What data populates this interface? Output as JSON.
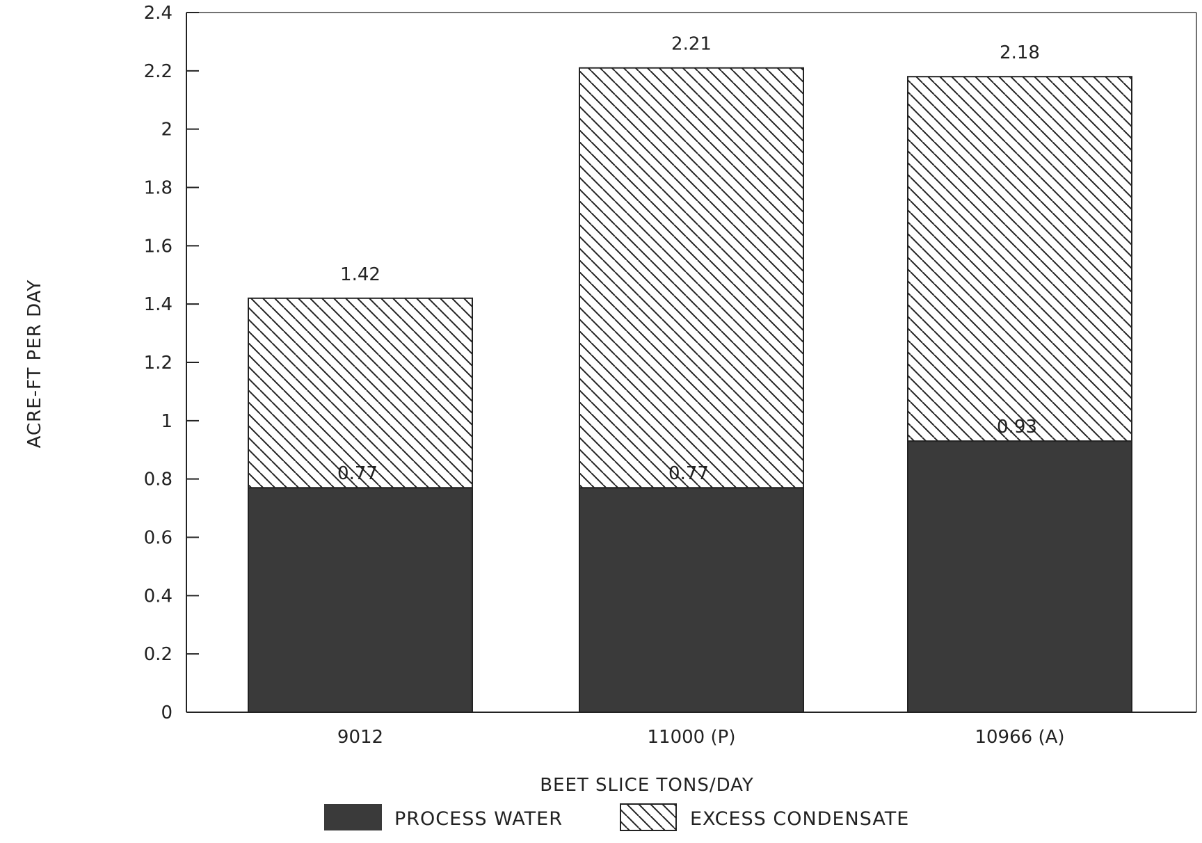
{
  "chart_data": {
    "type": "bar",
    "stacked": true,
    "categories": [
      "9012",
      "11000 (P)",
      "10966 (A)"
    ],
    "series": [
      {
        "name": "PROCESS WATER",
        "values": [
          0.77,
          0.77,
          0.93
        ],
        "color": "#3a3a3a",
        "pattern": "solid"
      },
      {
        "name": "EXCESS CONDENSATE",
        "values": [
          0.65,
          1.44,
          1.25
        ],
        "color": "#222222",
        "pattern": "diagonal-hatch"
      }
    ],
    "segment_labels": [
      "0.77",
      "0.77",
      "0.93"
    ],
    "total_labels": [
      "1.42",
      "2.21",
      "2.18"
    ],
    "totals": [
      1.42,
      2.21,
      2.18
    ],
    "xlabel": "BEET SLICE TONS/DAY",
    "ylabel": "ACRE-FT PER DAY",
    "ylim": [
      0,
      2.4
    ],
    "yticks": [
      0,
      0.2,
      0.4,
      0.6,
      0.8,
      1,
      1.2,
      1.4,
      1.6,
      1.8,
      2,
      2.2,
      2.4
    ],
    "ytick_labels": [
      "0",
      "0.2",
      "0.4",
      "0.6",
      "0.8",
      "1",
      "1.2",
      "1.4",
      "1.6",
      "1.8",
      "2",
      "2.2",
      "2.4"
    ],
    "grid": false,
    "legend_position": "bottom"
  },
  "legend": {
    "items": [
      {
        "label": "PROCESS WATER",
        "pattern": "solid"
      },
      {
        "label": "EXCESS CONDENSATE",
        "pattern": "diagonal-hatch"
      }
    ]
  }
}
